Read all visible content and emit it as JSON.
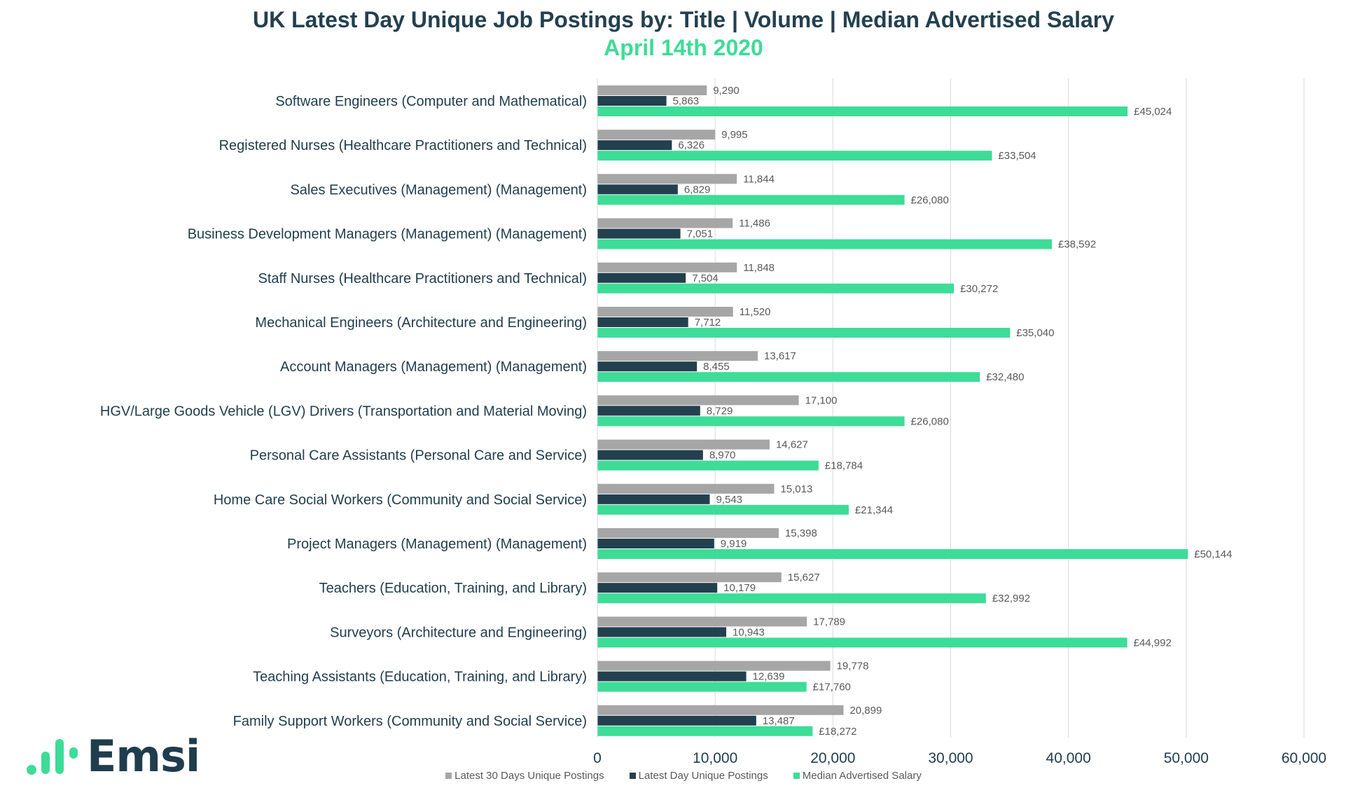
{
  "colors": {
    "latest_30": "#a6a6a6",
    "latest_day": "#23404f",
    "salary": "#3ddc97",
    "title": "#23404f",
    "subtitle": "#3ddc97",
    "grid": "#d9d9d9",
    "text": "#1f3d4d",
    "value_label": "#595959"
  },
  "logo": {
    "text": "Emsi",
    "icon": "bar-signal-icon"
  },
  "chart_data": {
    "type": "bar",
    "orientation": "horizontal",
    "title": "UK Latest Day Unique Job Postings by:  Title | Volume | Median Advertised Salary",
    "subtitle": "April 14th 2020",
    "xlim": [
      0,
      60000
    ],
    "xticks": [
      0,
      10000,
      20000,
      30000,
      40000,
      50000,
      60000
    ],
    "xtick_labels": [
      "0",
      "10,000",
      "20,000",
      "30,000",
      "40,000",
      "50,000",
      "60,000"
    ],
    "grid": true,
    "legend_position": "bottom",
    "categories": [
      "Software Engineers (Computer and Mathematical)",
      "Registered Nurses (Healthcare Practitioners and Technical)",
      "Sales Executives (Management) (Management)",
      "Business Development Managers (Management) (Management)",
      "Staff Nurses (Healthcare Practitioners and Technical)",
      "Mechanical Engineers (Architecture and Engineering)",
      "Account Managers (Management) (Management)",
      "HGV/Large Goods Vehicle (LGV) Drivers (Transportation and Material Moving)",
      "Personal Care Assistants (Personal Care and Service)",
      "Home Care Social Workers (Community and Social Service)",
      "Project Managers (Management) (Management)",
      "Teachers (Education, Training, and Library)",
      "Surveyors (Architecture and Engineering)",
      "Teaching Assistants (Education, Training, and Library)",
      "Family Support Workers (Community and Social Service)"
    ],
    "series": [
      {
        "name": "Latest 30 Days Unique Postings",
        "values": [
          9290,
          9995,
          11844,
          11486,
          11848,
          11520,
          13617,
          17100,
          14627,
          15013,
          15398,
          15627,
          17789,
          19778,
          20899
        ],
        "labels": [
          "9,290",
          "9,995",
          "11,844",
          "11,486",
          "11,848",
          "11,520",
          "13,617",
          "17,100",
          "14,627",
          "15,013",
          "15,398",
          "15,627",
          "17,789",
          "19,778",
          "20,899"
        ]
      },
      {
        "name": "Latest Day Unique Postings",
        "values": [
          5863,
          6326,
          6829,
          7051,
          7504,
          7712,
          8455,
          8729,
          8970,
          9543,
          9919,
          10179,
          10943,
          12639,
          13487
        ],
        "labels": [
          "5,863",
          "6,326",
          "6,829",
          "7,051",
          "7,504",
          "7,712",
          "8,455",
          "8,729",
          "8,970",
          "9,543",
          "9,919",
          "10,179",
          "10,943",
          "12,639",
          "13,487"
        ]
      },
      {
        "name": "Median Advertised Salary",
        "values": [
          45024,
          33504,
          26080,
          38592,
          30272,
          35040,
          32480,
          26080,
          18784,
          21344,
          50144,
          32992,
          44992,
          17760,
          18272
        ],
        "labels": [
          "£45,024",
          "£33,504",
          "£26,080",
          "£38,592",
          "£30,272",
          "£35,040",
          "£32,480",
          "£26,080",
          "£18,784",
          "£21,344",
          "£50,144",
          "£32,992",
          "£44,992",
          "£17,760",
          "£18,272"
        ]
      }
    ]
  }
}
